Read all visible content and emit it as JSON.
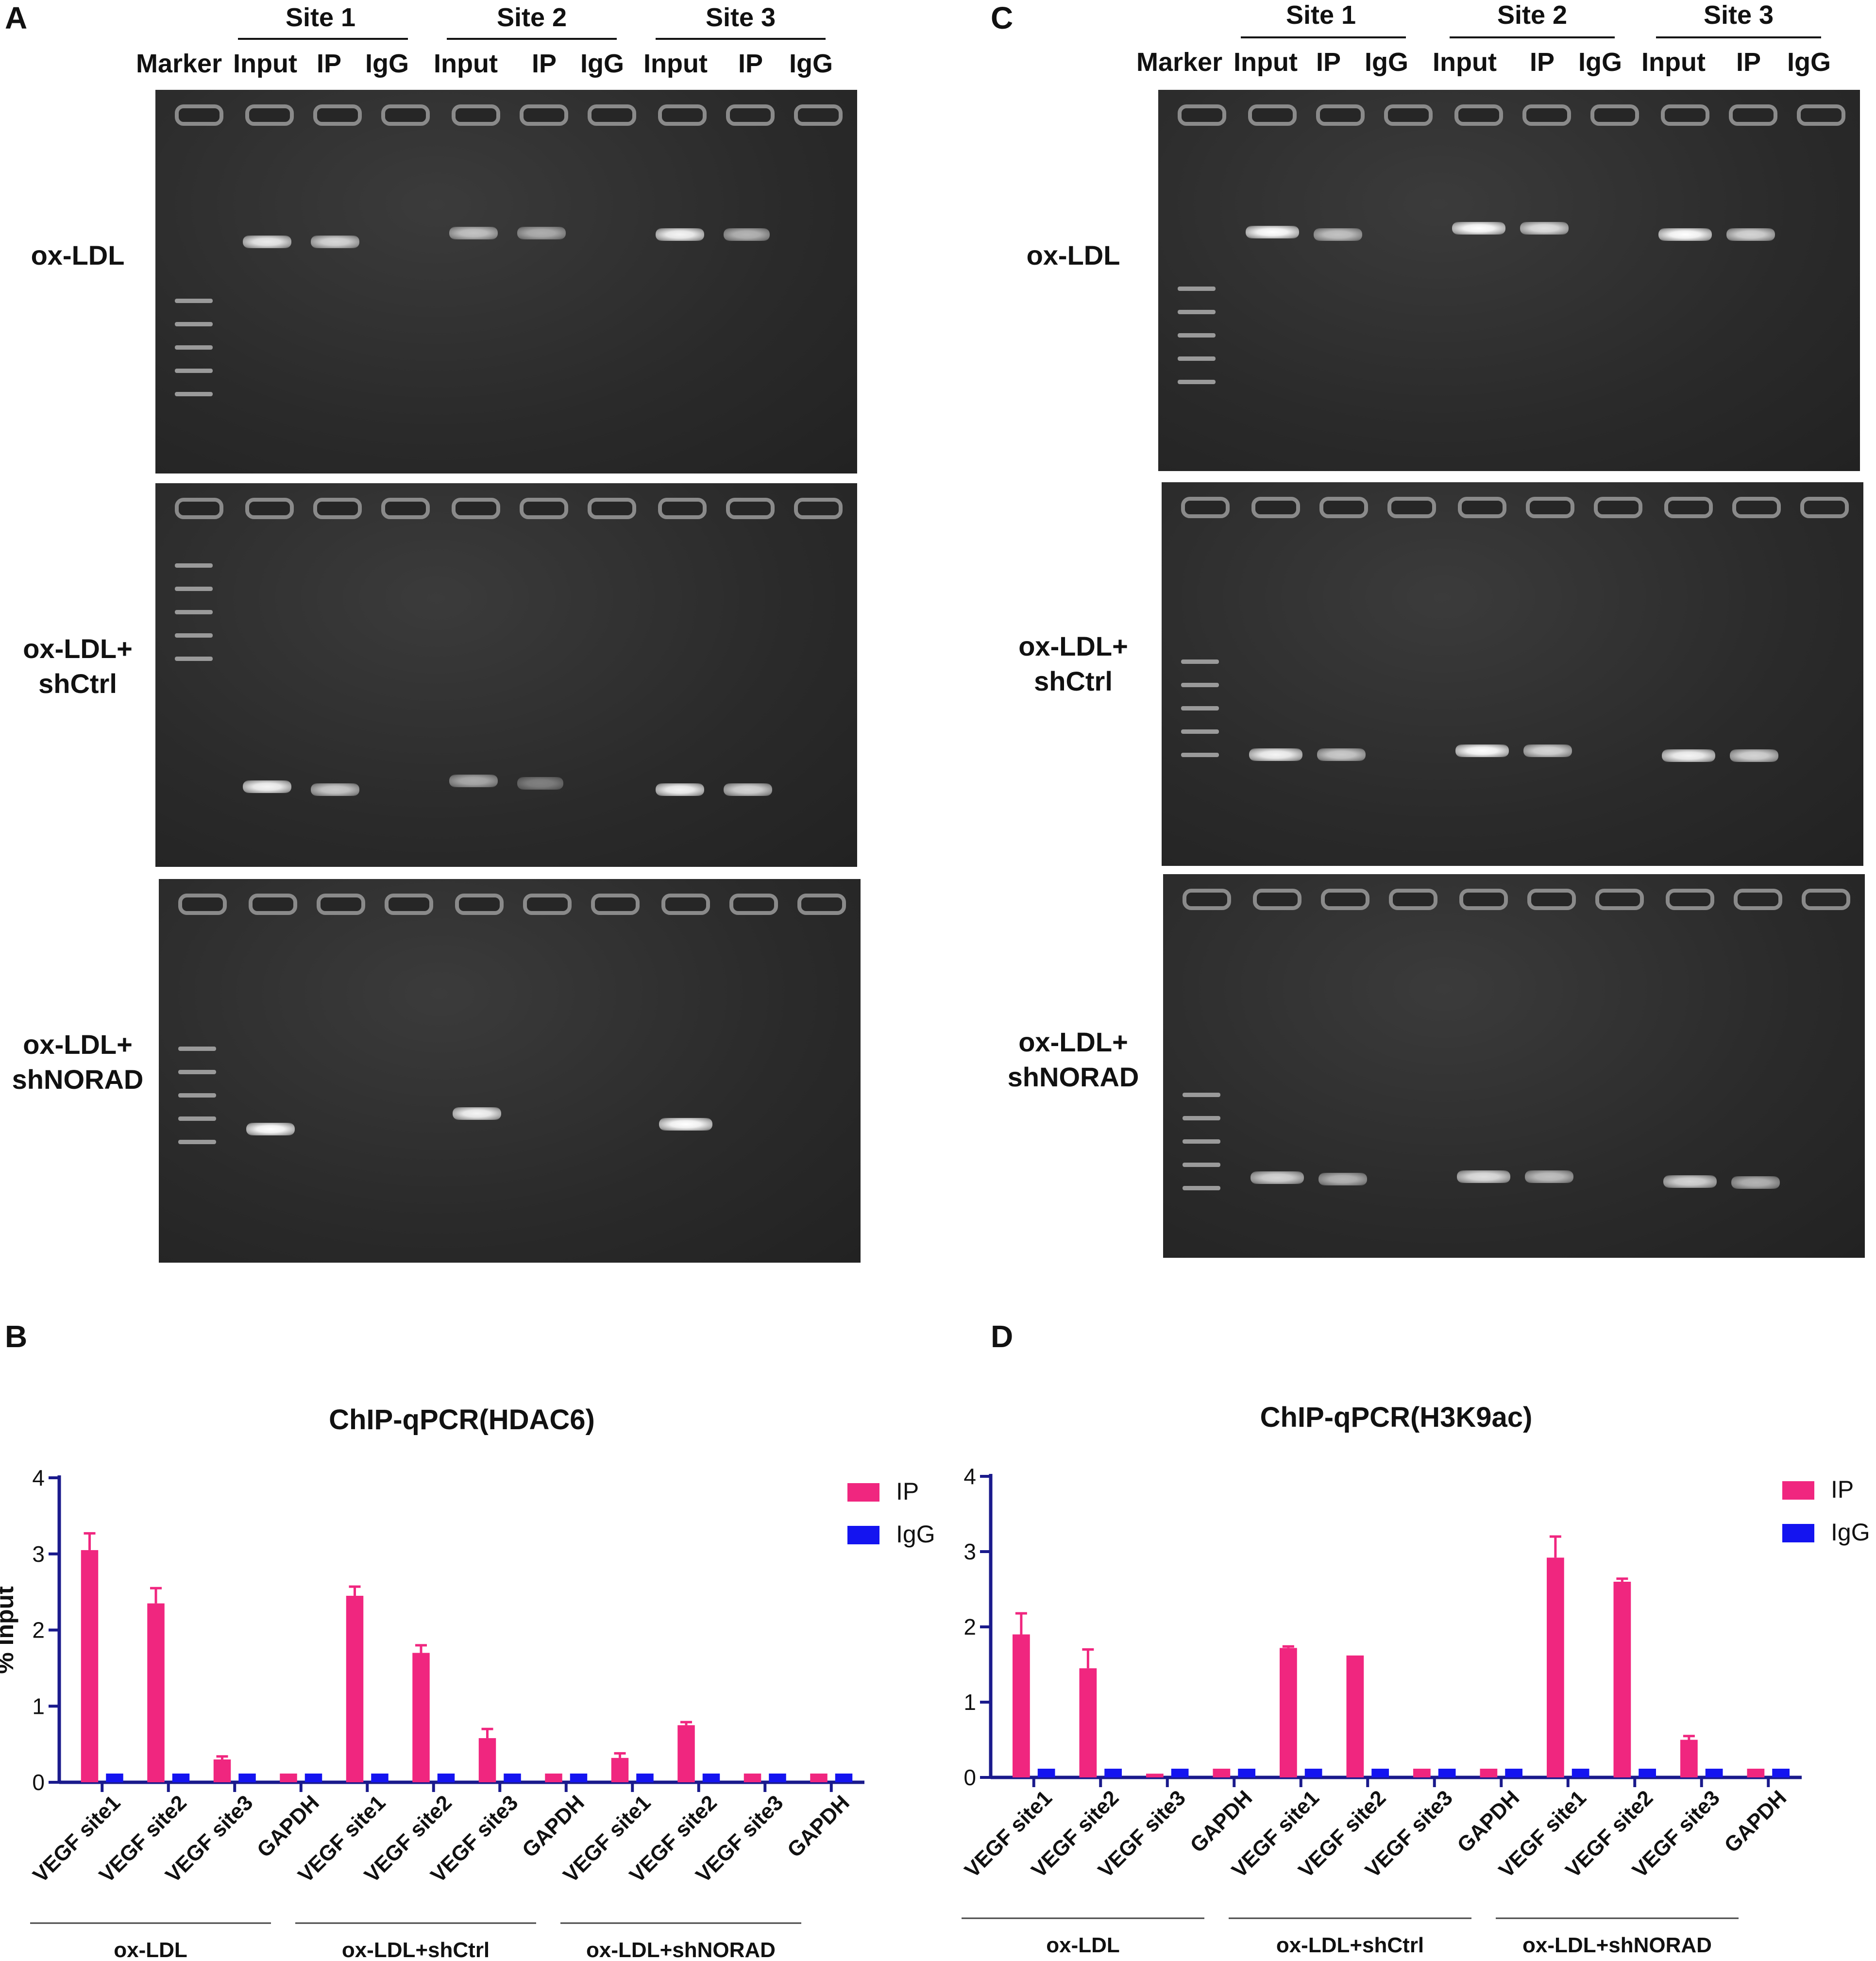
{
  "panels": {
    "a": "A",
    "b": "B",
    "c": "C",
    "d": "D"
  },
  "gels": {
    "sites": [
      "Site 1",
      "Site 2",
      "Site 3"
    ],
    "lanes": [
      "Marker",
      "Input",
      "IP",
      "IgG",
      "Input",
      "IP",
      "IgG",
      "Input",
      "IP",
      "IgG"
    ],
    "rows": [
      {
        "line1": "ox-LDL",
        "line2": ""
      },
      {
        "line1": "ox-LDL+",
        "line2": "shCtrl"
      },
      {
        "line1": "ox-LDL+",
        "line2": "shNORAD"
      }
    ]
  },
  "chart_data": [
    {
      "type": "bar",
      "title": "ChIP-qPCR(HDAC6)",
      "ylabel": "% Input",
      "xlabel": "",
      "ylim": [
        0,
        4
      ],
      "yticks": [
        0,
        1,
        2,
        3,
        4
      ],
      "categories": [
        "VEGF site1",
        "VEGF site2",
        "VEGF site3",
        "GAPDH",
        "VEGF site1",
        "VEGF site2",
        "VEGF site3",
        "GAPDH",
        "VEGF site1",
        "VEGF site2",
        "VEGF site3",
        "GAPDH"
      ],
      "groups": [
        "ox-LDL",
        "ox-LDL+shCtrl",
        "ox-LDL+shNORAD"
      ],
      "series": [
        {
          "name": "IP",
          "color": "#f0267f",
          "values": [
            3.05,
            2.35,
            0.3,
            0.0,
            2.45,
            1.7,
            0.58,
            0.0,
            0.32,
            0.75,
            0.02,
            0.0
          ],
          "errors": [
            0.22,
            0.2,
            0.04,
            0,
            0.12,
            0.1,
            0.12,
            0,
            0.06,
            0.04,
            0,
            0
          ]
        },
        {
          "name": "IgG",
          "color": "#1414f0",
          "values": [
            0.0,
            0.0,
            0.0,
            0.0,
            0.0,
            0.0,
            0.0,
            0.0,
            0.0,
            0.0,
            0.0,
            0.0
          ],
          "errors": [
            0,
            0,
            0,
            0,
            0,
            0,
            0,
            0,
            0,
            0,
            0,
            0
          ]
        }
      ],
      "legend": "top-right"
    },
    {
      "type": "bar",
      "title": "ChIP-qPCR(H3K9ac)",
      "ylabel": "",
      "xlabel": "",
      "ylim": [
        0,
        4
      ],
      "yticks": [
        0,
        1,
        2,
        3,
        4
      ],
      "categories": [
        "VEGF site1",
        "VEGF site2",
        "VEGF site3",
        "GAPDH",
        "VEGF site1",
        "VEGF site2",
        "VEGF site3",
        "GAPDH",
        "VEGF site1",
        "VEGF site2",
        "VEGF site3",
        "GAPDH"
      ],
      "groups": [
        "ox-LDL",
        "ox-LDL+shCtrl",
        "ox-LDL+shNORAD"
      ],
      "series": [
        {
          "name": "IP",
          "color": "#f0267f",
          "values": [
            1.9,
            1.45,
            0.05,
            0.0,
            1.72,
            1.62,
            0.02,
            0.0,
            2.92,
            2.6,
            0.5,
            0.0
          ],
          "errors": [
            0.28,
            0.25,
            0,
            0,
            0.02,
            0,
            0,
            0,
            0.28,
            0.04,
            0.05,
            0
          ]
        },
        {
          "name": "IgG",
          "color": "#1414f0",
          "values": [
            0.0,
            0.0,
            0.0,
            0.0,
            0.0,
            0.0,
            0.0,
            0.0,
            0.0,
            0.0,
            0.0,
            0.0
          ],
          "errors": [
            0,
            0,
            0,
            0,
            0,
            0,
            0,
            0,
            0,
            0,
            0,
            0
          ]
        }
      ],
      "legend": "top-right"
    }
  ]
}
